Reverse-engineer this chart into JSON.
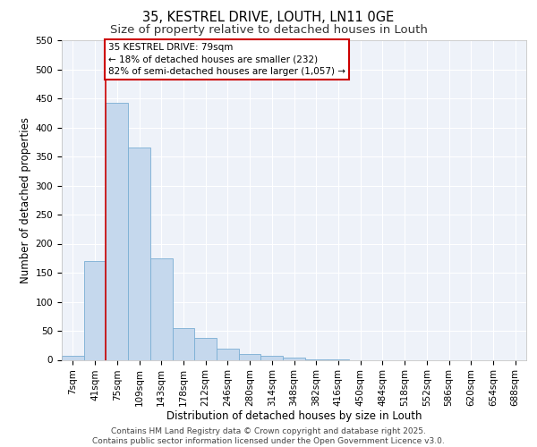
{
  "title1": "35, KESTREL DRIVE, LOUTH, LN11 0GE",
  "title2": "Size of property relative to detached houses in Louth",
  "xlabel": "Distribution of detached houses by size in Louth",
  "ylabel": "Number of detached properties",
  "categories": [
    "7sqm",
    "41sqm",
    "75sqm",
    "109sqm",
    "143sqm",
    "178sqm",
    "212sqm",
    "246sqm",
    "280sqm",
    "314sqm",
    "348sqm",
    "382sqm",
    "416sqm",
    "450sqm",
    "484sqm",
    "518sqm",
    "552sqm",
    "586sqm",
    "620sqm",
    "654sqm",
    "688sqm"
  ],
  "values": [
    7,
    170,
    443,
    365,
    175,
    55,
    38,
    20,
    10,
    7,
    4,
    1,
    1,
    0,
    0,
    0,
    0,
    0,
    0,
    0,
    0
  ],
  "bar_color": "#c5d8ed",
  "bar_edge_color": "#7aaed4",
  "highlight_color": "#cc0000",
  "annotation_line1": "35 KESTREL DRIVE: 79sqm",
  "annotation_line2": "← 18% of detached houses are smaller (232)",
  "annotation_line3": "82% of semi-detached houses are larger (1,057) →",
  "annotation_box_color": "#cc0000",
  "ylim": [
    0,
    550
  ],
  "yticks": [
    0,
    50,
    100,
    150,
    200,
    250,
    300,
    350,
    400,
    450,
    500,
    550
  ],
  "background_color": "#eef2f9",
  "grid_color": "#ffffff",
  "footer_line1": "Contains HM Land Registry data © Crown copyright and database right 2025.",
  "footer_line2": "Contains public sector information licensed under the Open Government Licence v3.0.",
  "title1_fontsize": 10.5,
  "title2_fontsize": 9.5,
  "axis_label_fontsize": 8.5,
  "tick_fontsize": 7.5,
  "annotation_fontsize": 7.5,
  "footer_fontsize": 6.5
}
